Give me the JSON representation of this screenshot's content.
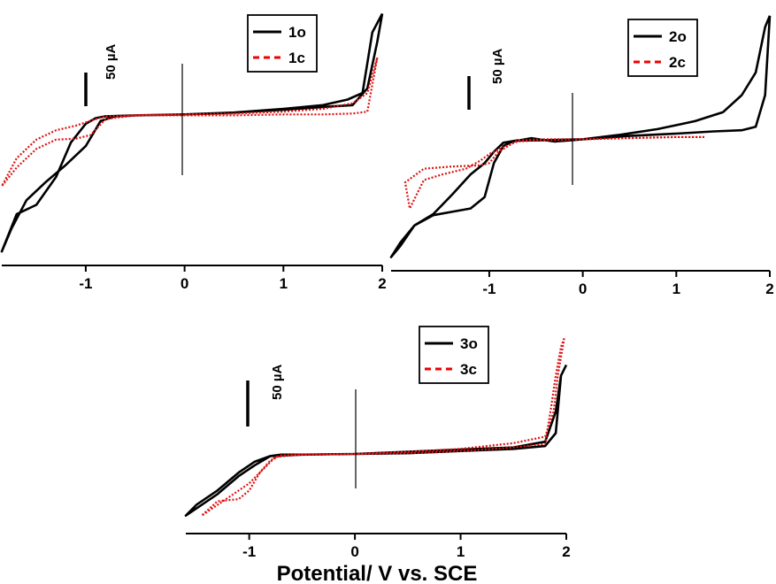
{
  "chart_data": [
    {
      "type": "line",
      "panel": "1",
      "title": "",
      "xlabel": "",
      "ylabel": "",
      "xlim": [
        -1.85,
        2.0
      ],
      "ylim": [
        -160,
        120
      ],
      "xticks": [
        -1,
        0,
        1,
        2
      ],
      "tick_labels": [
        "-1",
        "0",
        "1",
        "2"
      ],
      "scale_bar_value": 50,
      "scale_bar_label": "50 µA",
      "legend": [
        "1o",
        "1c"
      ],
      "series": [
        {
          "name": "1o",
          "style": "solid",
          "color": "#000000",
          "x": [
            2.0,
            1.9,
            1.8,
            1.65,
            1.4,
            1.0,
            0.5,
            0.0,
            -0.5,
            -0.8,
            -0.9,
            -1.0,
            -1.15,
            -1.3,
            -1.5,
            -1.7,
            -1.85,
            -1.75,
            -1.6,
            -1.4,
            -1.2,
            -1.0,
            -0.85,
            -0.7,
            -0.5,
            0.0,
            0.5,
            1.0,
            1.4,
            1.7,
            1.85,
            1.95,
            2.0
          ],
          "y": [
            110,
            90,
            25,
            18,
            12,
            8,
            4,
            2,
            1,
            0,
            -2,
            -8,
            -28,
            -65,
            -95,
            -105,
            -145,
            -120,
            -90,
            -70,
            -52,
            -32,
            -5,
            0,
            1,
            2,
            4,
            7,
            10,
            12,
            30,
            80,
            110
          ]
        },
        {
          "name": "1c",
          "style": "dashed",
          "color": "#dd1111",
          "x": [
            1.95,
            1.85,
            1.7,
            1.4,
            1.0,
            0.5,
            0.0,
            -0.5,
            -0.8,
            -0.9,
            -1.1,
            -1.3,
            -1.5,
            -1.7,
            -1.85,
            -1.7,
            -1.5,
            -1.3,
            -1.1,
            -0.95,
            -0.8,
            -0.5,
            0.0,
            0.5,
            1.0,
            1.4,
            1.7,
            1.85,
            1.95
          ],
          "y": [
            63,
            5,
            3,
            2,
            2,
            1,
            1,
            1,
            0,
            -3,
            -10,
            -15,
            -25,
            -45,
            -75,
            -55,
            -35,
            -25,
            -24,
            -20,
            -3,
            1,
            2,
            3,
            5,
            8,
            14,
            25,
            63
          ]
        }
      ]
    },
    {
      "type": "line",
      "panel": "2",
      "title": "",
      "xlabel": "",
      "ylabel": "",
      "xlim": [
        -2.05,
        2.0
      ],
      "ylim": [
        -115,
        120
      ],
      "xticks": [
        -1,
        0,
        1,
        2
      ],
      "tick_labels": [
        "-1",
        "0",
        "1",
        "2"
      ],
      "scale_bar_value": 50,
      "scale_bar_label": "50 µA",
      "legend": [
        "2o",
        "2c"
      ],
      "series": [
        {
          "name": "2o",
          "style": "solid",
          "color": "#000000",
          "x": [
            2.0,
            1.95,
            1.85,
            1.7,
            1.5,
            1.2,
            0.8,
            0.4,
            0.0,
            -0.3,
            -0.55,
            -0.75,
            -0.85,
            -0.95,
            -1.05,
            -1.2,
            -1.4,
            -1.6,
            -1.8,
            -1.95,
            -2.05,
            -1.95,
            -1.8,
            -1.6,
            -1.4,
            -1.2,
            -1.05,
            -0.95,
            -0.85,
            -0.7,
            -0.5,
            0.0,
            0.5,
            1.0,
            1.4,
            1.7,
            1.85,
            1.95,
            2.0
          ],
          "y": [
            110,
            100,
            60,
            40,
            25,
            17,
            10,
            5,
            1,
            -1,
            2,
            -1,
            -5,
            -20,
            -50,
            -60,
            -63,
            -66,
            -75,
            -93,
            -103,
            -90,
            -75,
            -65,
            -48,
            -30,
            -20,
            -10,
            -2,
            0,
            0,
            1,
            4,
            6,
            8,
            9,
            12,
            40,
            110
          ]
        },
        {
          "name": "2c",
          "style": "dashed",
          "color": "#dd1111",
          "x": [
            1.3,
            1.0,
            0.5,
            0.0,
            -0.4,
            -0.7,
            -0.9,
            -1.0,
            -1.1,
            -1.4,
            -1.7,
            -1.9,
            -1.85,
            -1.7,
            -1.5,
            -1.25,
            -1.1,
            -1.0,
            -0.85,
            -0.7,
            -0.5,
            0.0,
            0.5,
            1.0,
            1.3
          ],
          "y": [
            3,
            3,
            2,
            1,
            1,
            0,
            -10,
            -20,
            -22,
            -23,
            -25,
            -37,
            -60,
            -35,
            -30,
            -25,
            -18,
            -12,
            -6,
            -1,
            0,
            1,
            2,
            3,
            3
          ]
        }
      ]
    },
    {
      "type": "line",
      "panel": "3",
      "title": "",
      "xlabel": "Potential/ V vs. SCE",
      "ylabel": "",
      "xlim": [
        -1.6,
        2.0
      ],
      "ylim": [
        -110,
        165
      ],
      "xticks": [
        -1,
        0,
        1,
        2
      ],
      "tick_labels": [
        "-1",
        "0",
        "1",
        "2"
      ],
      "scale_bar_value": 50,
      "scale_bar_label": "50 µA",
      "legend": [
        "3o",
        "3c"
      ],
      "series": [
        {
          "name": "3o",
          "style": "solid",
          "color": "#000000",
          "x": [
            2.0,
            1.95,
            1.9,
            1.8,
            1.5,
            1.0,
            0.5,
            0.0,
            -0.5,
            -0.8,
            -0.95,
            -1.1,
            -1.3,
            -1.5,
            -1.6,
            -1.45,
            -1.3,
            -1.1,
            -0.95,
            -0.8,
            -0.7,
            -0.5,
            0.0,
            0.5,
            1.0,
            1.5,
            1.8,
            1.9,
            1.95,
            2.0
          ],
          "y": [
            125,
            110,
            30,
            12,
            8,
            5,
            2,
            1,
            0,
            -2,
            -10,
            -25,
            -50,
            -70,
            -85,
            -70,
            -55,
            -30,
            -15,
            -2,
            0,
            0,
            1,
            4,
            7,
            10,
            18,
            60,
            110,
            125
          ]
        },
        {
          "name": "3c",
          "style": "dashed",
          "color": "#dd1111",
          "x": [
            1.98,
            1.95,
            1.9,
            1.85,
            1.8,
            1.5,
            1.0,
            0.5,
            0.0,
            -0.5,
            -0.75,
            -0.9,
            -1.0,
            -1.1,
            -1.3,
            -1.45,
            -1.3,
            -1.15,
            -1.0,
            -0.9,
            -0.8,
            -0.7,
            -0.5,
            0.0,
            0.5,
            1.0,
            1.5,
            1.8,
            1.88,
            1.92,
            1.98
          ],
          "y": [
            162,
            150,
            110,
            60,
            15,
            10,
            5,
            2,
            1,
            0,
            -3,
            -25,
            -50,
            -62,
            -65,
            -85,
            -70,
            -55,
            -40,
            -25,
            -8,
            -1,
            0,
            1,
            4,
            8,
            16,
            25,
            60,
            110,
            162
          ]
        }
      ]
    }
  ]
}
